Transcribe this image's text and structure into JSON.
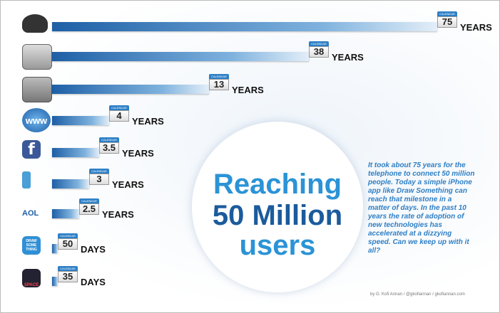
{
  "items": [
    {
      "value": 75,
      "unit": "YEARS"
    },
    {
      "value": 38,
      "unit": "YEARS"
    },
    {
      "value": 13,
      "unit": "YEARS"
    },
    {
      "value": 4,
      "unit": "YEARS",
      "icon": "www"
    },
    {
      "value": 3.5,
      "unit": "YEARS",
      "icon": "f"
    },
    {
      "value": 3,
      "unit": "YEARS"
    },
    {
      "value": 2.5,
      "unit": "YEARS",
      "icon": "AOL"
    },
    {
      "value": 50,
      "unit": "DAYS",
      "icon": "DRAW SOME THING"
    },
    {
      "value": 35,
      "unit": "DAYS",
      "icon": "SPACE"
    }
  ],
  "calendar_label": "CALENDAR",
  "title": [
    "Reaching",
    "50 Million",
    "users"
  ],
  "description": "It took about 75 years for the telephone to connect 50 million people. Today a simple iPhone app like Draw Something can reach that milestone in a matter of days. In the past 10 years the rate of adoption of new technologies has accelerated at a dizzying speed. Can we keep up with it all?",
  "credit": "by G. Kofi Annan / @gkofiannan / gkofiannan.com"
}
